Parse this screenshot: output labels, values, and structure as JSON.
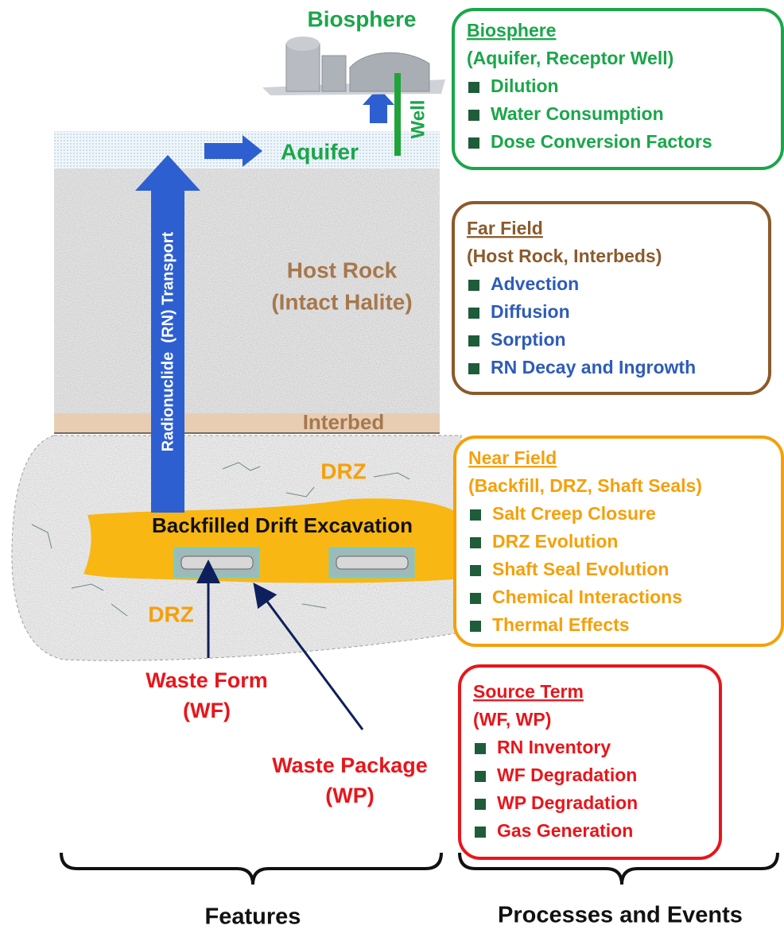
{
  "diagram": {
    "biosphere_label": "Biosphere",
    "well_label": "Well",
    "aquifer_label": "Aquifer",
    "transport_label": "Radionuclide  (RN) Transport",
    "host_rock": [
      "Host Rock",
      "(Intact Halite)"
    ],
    "interbed_label": "Interbed",
    "drz_labels": [
      "DRZ",
      "DRZ"
    ],
    "drift_label": "Backfilled Drift Excavation",
    "waste_form": [
      "Waste Form",
      "(WF)"
    ],
    "waste_package": [
      "Waste Package",
      "(WP)"
    ]
  },
  "boxes": [
    {
      "title": "Biosphere",
      "subtitle": "(Aquifer, Receptor Well)",
      "items": [
        "Dilution",
        "Water Consumption",
        "Dose Conversion Factors"
      ]
    },
    {
      "title": "Far Field",
      "subtitle": "(Host Rock, Interbeds)",
      "items": [
        "Advection",
        "Diffusion",
        "Sorption",
        "RN Decay and Ingrowth"
      ]
    },
    {
      "title": "Near Field",
      "subtitle": "(Backfill, DRZ, Shaft Seals)",
      "items": [
        "Salt Creep Closure",
        "DRZ Evolution",
        "Shaft Seal Evolution",
        "Chemical Interactions",
        "Thermal Effects"
      ]
    },
    {
      "title": "Source Term",
      "subtitle": "(WF, WP)",
      "items": [
        "RN Inventory",
        "WF Degradation",
        "WP Degradation",
        "Gas Generation"
      ]
    }
  ],
  "footer": {
    "features": "Features",
    "processes": "Processes and Events"
  }
}
